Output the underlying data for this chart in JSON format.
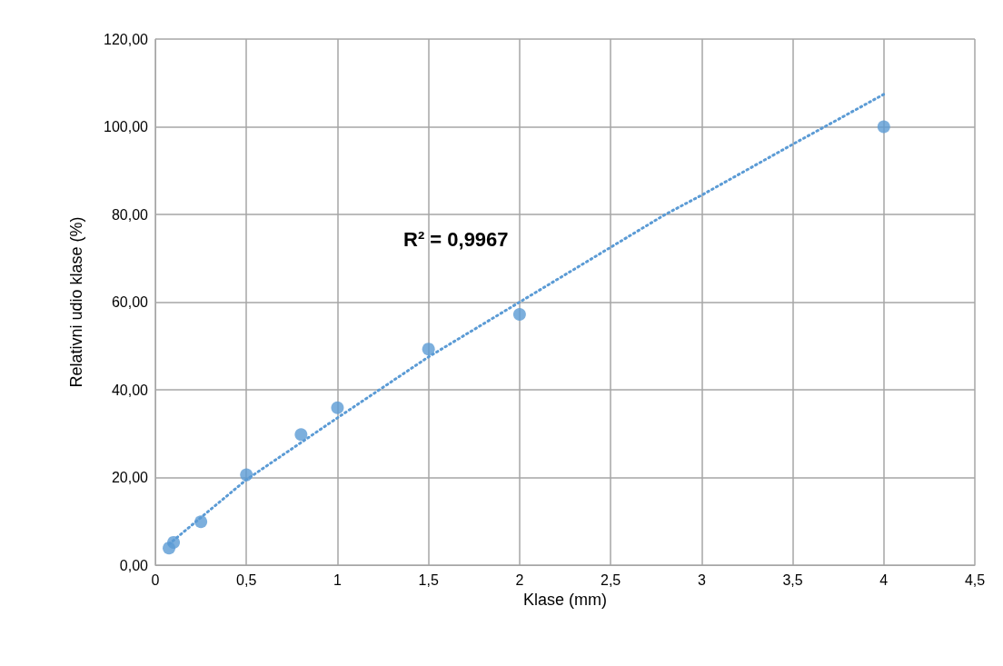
{
  "chart_data": {
    "type": "scatter",
    "xlabel": "Klase (mm)",
    "ylabel": "Relativni udio klase (%)",
    "annotations": [
      "R² = 0,9967"
    ],
    "series": [
      {
        "color": "#5b9bd5",
        "marker": "circle",
        "x": [
          0.075,
          0.1,
          0.25,
          0.5,
          0.8,
          1,
          1.5,
          2,
          4
        ],
        "values": [
          3.9,
          5.2,
          9.9,
          20.6,
          29.8,
          35.9,
          49.3,
          57.2,
          100
        ]
      },
      {
        "type": "line",
        "color": "#5b9bd5",
        "marker": "none",
        "line_style": "dotted",
        "x": [
          0.075,
          0.5,
          1,
          1.5,
          2,
          2.8,
          3,
          3.5,
          4
        ],
        "values": [
          4.8,
          19.5,
          33.6,
          47.5,
          60,
          80,
          84.4,
          96,
          107.4
        ]
      }
    ],
    "xlim": [
      0,
      4.5
    ],
    "xticks": [
      0,
      {
        "value": 0.5,
        "label": "0,5"
      },
      1,
      {
        "value": 1.5,
        "label": "1,5"
      },
      2,
      {
        "value": 2.5,
        "label": "2,5"
      },
      3,
      {
        "value": 3.5,
        "label": "3,5"
      },
      4,
      {
        "value": 4.5,
        "label": "4,5"
      }
    ],
    "ylim": [
      0,
      120
    ],
    "yticks": [
      {
        "value": 0,
        "label": "0,00"
      },
      {
        "value": 20,
        "label": "20,00"
      },
      {
        "value": 40,
        "label": "40,00"
      },
      {
        "value": 60,
        "label": "60,00"
      },
      {
        "value": 80,
        "label": "80,00"
      },
      {
        "value": 100,
        "label": "100,00"
      },
      {
        "value": 120,
        "label": "120,00"
      }
    ],
    "grid": true
  }
}
